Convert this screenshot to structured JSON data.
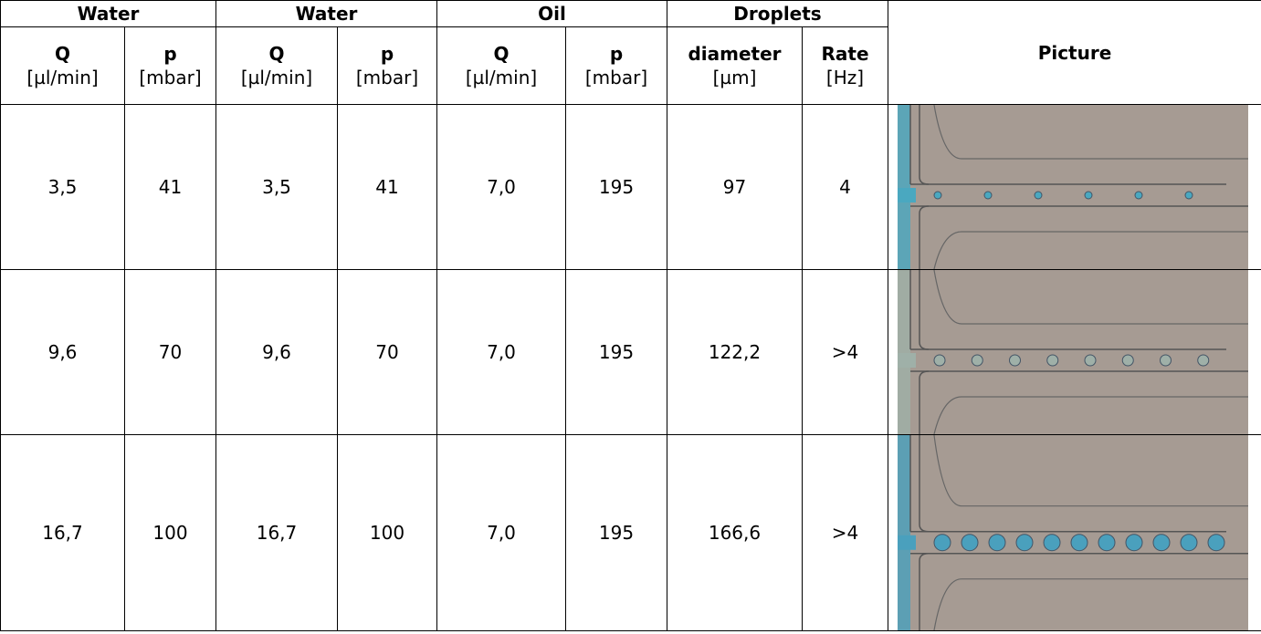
{
  "table": {
    "group_headers": [
      "Water",
      "Water",
      "Oil",
      "Droplets",
      "Picture"
    ],
    "sub_headers": [
      [
        "Q",
        "[µl/min]"
      ],
      [
        "p",
        "[mbar]"
      ],
      [
        "Q",
        "[µl/min]"
      ],
      [
        "p",
        "[mbar]"
      ],
      [
        "Q",
        "[µl/min]"
      ],
      [
        "p",
        "[mbar]"
      ],
      [
        "diameter",
        "[µm]"
      ],
      [
        "Rate",
        "[Hz]"
      ]
    ],
    "rows": [
      [
        "3,5",
        "41",
        "3,5",
        "41",
        "7,0",
        "195",
        "97",
        "4"
      ],
      [
        "9,6",
        "70",
        "9,6",
        "70",
        "7,0",
        "195",
        "122,2",
        ">4"
      ],
      [
        "16,7",
        "100",
        "16,7",
        "100",
        "7,0",
        "195",
        "166,6",
        ">4"
      ]
    ]
  }
}
